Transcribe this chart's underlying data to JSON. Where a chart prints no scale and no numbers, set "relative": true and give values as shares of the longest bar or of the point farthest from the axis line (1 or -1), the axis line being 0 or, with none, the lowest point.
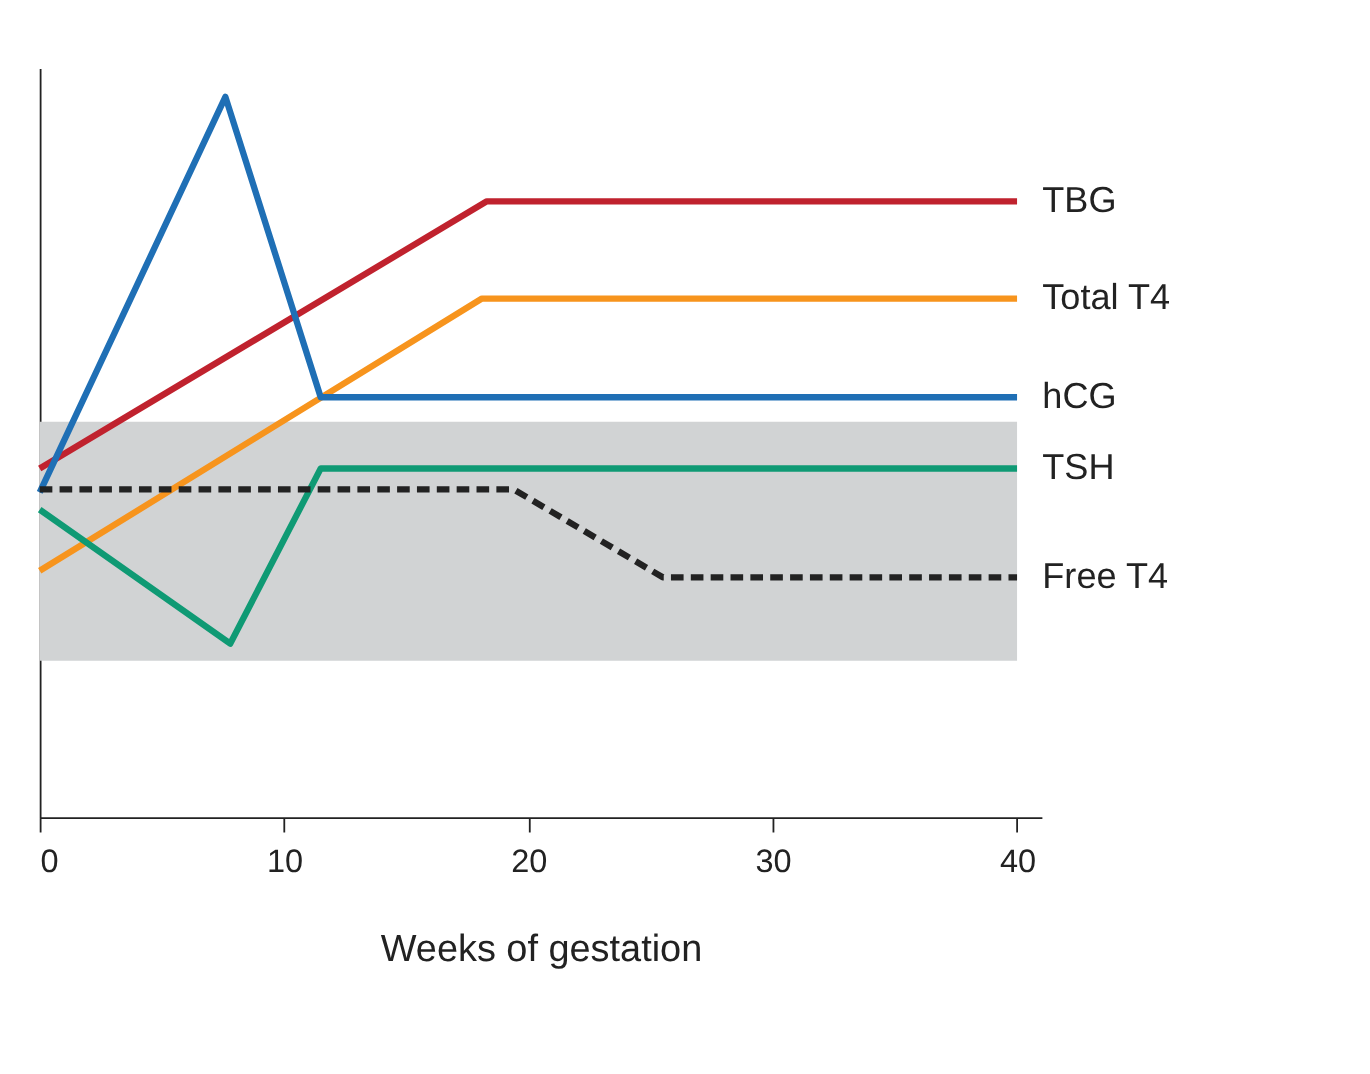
{
  "chart_data": {
    "type": "line",
    "xlabel": "Weeks of gestation",
    "relative": true,
    "xlim": [
      0,
      41
    ],
    "xticks": [
      0,
      10,
      20,
      30,
      40
    ],
    "grid": false,
    "legend": false,
    "marker": "none",
    "bands": [
      {
        "axis": "y",
        "from": 0.217,
        "to": 0.549,
        "color": "#d1d3d4"
      }
    ],
    "series": [
      {
        "name": "TBG",
        "color": "#c0222e",
        "x": [
          0,
          18.3,
          40
        ],
        "values": [
          0.484,
          0.855,
          0.855
        ]
      },
      {
        "name": "Total T4",
        "color": "#f7941d",
        "x": [
          0,
          18.1,
          40
        ],
        "values": [
          0.342,
          0.72,
          0.72
        ]
      },
      {
        "name": "hCG",
        "color": "#1f6fb5",
        "x": [
          0,
          7.6,
          11.5,
          40
        ],
        "values": [
          0.451,
          1,
          0.583,
          0.583
        ]
      },
      {
        "name": "TSH",
        "color": "#0f9a74",
        "x": [
          0,
          7.8,
          11.5,
          40
        ],
        "values": [
          0.427,
          0.241,
          0.484,
          0.484
        ]
      },
      {
        "name": "Free T4",
        "color": "#222222",
        "line_style": "dashed",
        "x": [
          0,
          19.4,
          25.5,
          40
        ],
        "values": [
          0.455,
          0.455,
          0.333,
          0.333
        ]
      }
    ]
  }
}
